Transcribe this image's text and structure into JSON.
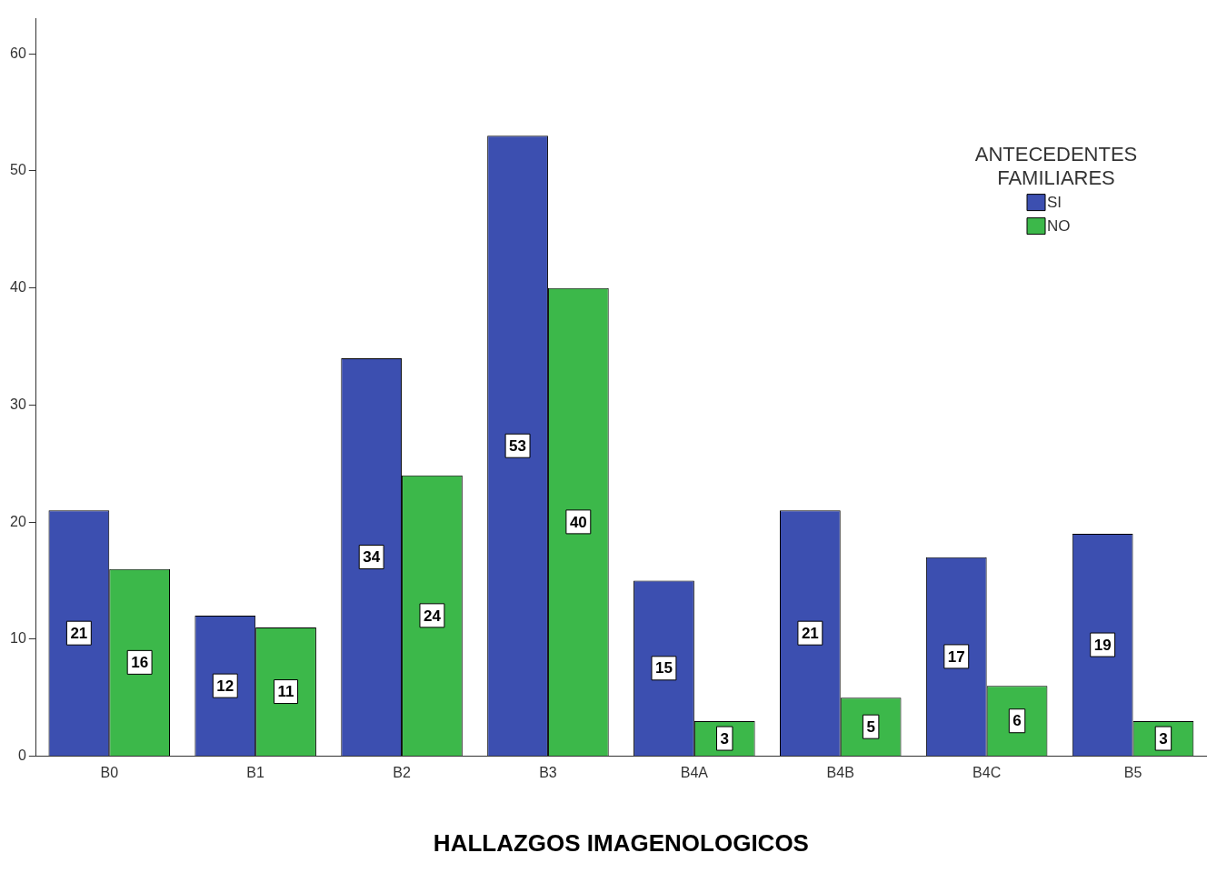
{
  "chart_data": {
    "type": "bar",
    "xlabel": "HALLAZGOS IMAGENOLOGICOS",
    "legend_title": "ANTECEDENTES FAMILIARES",
    "categories": [
      "B0",
      "B1",
      "B2",
      "B3",
      "B4A",
      "B4B",
      "B4C",
      "B5"
    ],
    "series": [
      {
        "name": "SI",
        "color": "#3c4fb0",
        "values": [
          21,
          12,
          34,
          53,
          15,
          21,
          17,
          19
        ]
      },
      {
        "name": "NO",
        "color": "#3cb84a",
        "values": [
          16,
          11,
          24,
          40,
          3,
          5,
          6,
          3
        ]
      }
    ],
    "ylim": [
      0,
      63
    ],
    "yticks": [
      0,
      10,
      20,
      30,
      40,
      50,
      60
    ],
    "grid": false,
    "legend": "top right",
    "data_labels": true
  }
}
